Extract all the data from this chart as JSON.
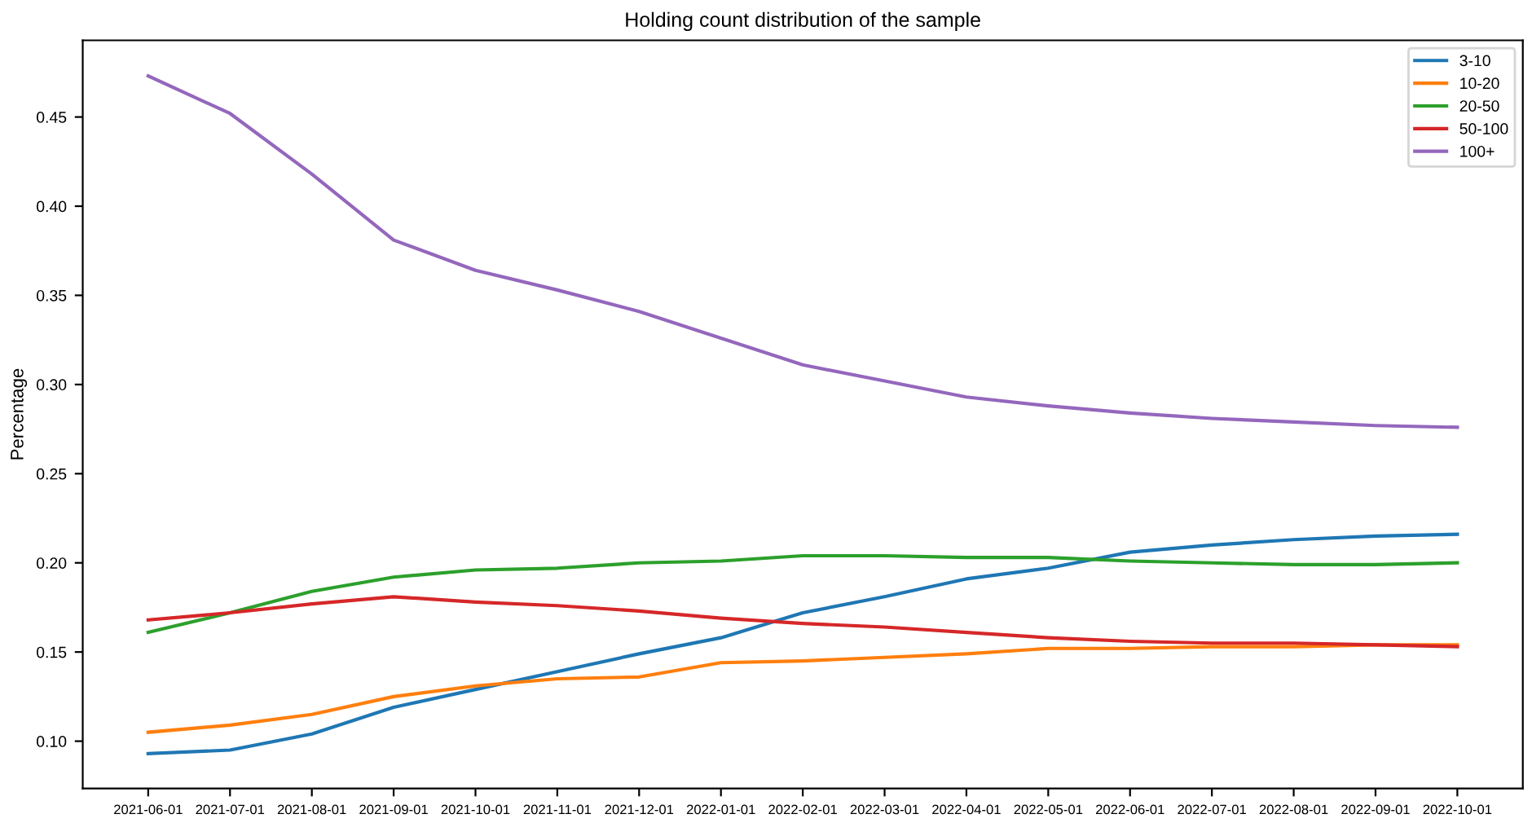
{
  "chart_data": {
    "type": "line",
    "title": "Holding count distribution of the sample",
    "ylabel": "Percentage",
    "categories": [
      "2021-06-01",
      "2021-07-01",
      "2021-08-01",
      "2021-09-01",
      "2021-10-01",
      "2021-11-01",
      "2021-12-01",
      "2022-01-01",
      "2022-02-01",
      "2022-03-01",
      "2022-04-01",
      "2022-05-01",
      "2022-06-01",
      "2022-07-01",
      "2022-08-01",
      "2022-09-01",
      "2022-10-01"
    ],
    "series": [
      {
        "name": "3-10",
        "color": "#1f77b4",
        "values": [
          0.093,
          0.095,
          0.104,
          0.119,
          0.129,
          0.139,
          0.149,
          0.158,
          0.172,
          0.181,
          0.191,
          0.197,
          0.206,
          0.21,
          0.213,
          0.215,
          0.216
        ]
      },
      {
        "name": "10-20",
        "color": "#ff7f0e",
        "values": [
          0.105,
          0.109,
          0.115,
          0.125,
          0.131,
          0.135,
          0.136,
          0.144,
          0.145,
          0.147,
          0.149,
          0.152,
          0.152,
          0.153,
          0.153,
          0.154,
          0.154
        ]
      },
      {
        "name": "20-50",
        "color": "#2ca02c",
        "values": [
          0.161,
          0.172,
          0.184,
          0.192,
          0.196,
          0.197,
          0.2,
          0.201,
          0.204,
          0.204,
          0.203,
          0.203,
          0.201,
          0.2,
          0.199,
          0.199,
          0.2
        ]
      },
      {
        "name": "50-100",
        "color": "#d62728",
        "values": [
          0.168,
          0.172,
          0.177,
          0.181,
          0.178,
          0.176,
          0.173,
          0.169,
          0.166,
          0.164,
          0.161,
          0.158,
          0.156,
          0.155,
          0.155,
          0.154,
          0.153
        ]
      },
      {
        "name": "100+",
        "color": "#9467bd",
        "values": [
          0.473,
          0.452,
          0.418,
          0.381,
          0.364,
          0.353,
          0.341,
          0.326,
          0.311,
          0.302,
          0.293,
          0.288,
          0.284,
          0.281,
          0.279,
          0.277,
          0.276
        ]
      }
    ],
    "ylim": [
      0.0735,
      0.493
    ],
    "yticks": [
      {
        "value": 0.1,
        "label": "0.10"
      },
      {
        "value": 0.15,
        "label": "0.15"
      },
      {
        "value": 0.2,
        "label": "0.20"
      },
      {
        "value": 0.25,
        "label": "0.25"
      },
      {
        "value": 0.3,
        "label": "0.30"
      },
      {
        "value": 0.35,
        "label": "0.35"
      },
      {
        "value": 0.4,
        "label": "0.40"
      },
      {
        "value": 0.45,
        "label": "0.45"
      }
    ],
    "grid": false,
    "legend": "top right"
  }
}
